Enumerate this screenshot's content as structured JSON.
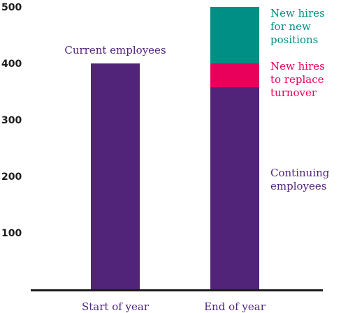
{
  "chart_data": {
    "type": "bar",
    "stacked": true,
    "categories": [
      "Start of year",
      "End of year"
    ],
    "ylim": [
      0,
      500
    ],
    "yticks": [
      100,
      200,
      300,
      400,
      500
    ],
    "grid": false,
    "series": [
      {
        "key": "current",
        "values": [
          400,
          0
        ],
        "color": "#51247a"
      },
      {
        "key": "continuing",
        "values": [
          0,
          358
        ],
        "color": "#51247a"
      },
      {
        "key": "replace",
        "values": [
          0,
          42
        ],
        "color": "#e8005a"
      },
      {
        "key": "new_positions",
        "values": [
          0,
          100
        ],
        "color": "#008f85"
      }
    ],
    "annotations": [
      {
        "key": "current",
        "lines": [
          "Current employees"
        ],
        "color": "#51247a"
      },
      {
        "key": "new_positions",
        "lines": [
          "New hires",
          "for new",
          "positions"
        ],
        "color": "#008f85"
      },
      {
        "key": "replace",
        "lines": [
          "New hires",
          "to replace",
          "turnover"
        ],
        "color": "#e8005a"
      },
      {
        "key": "continuing",
        "lines": [
          "Continuing",
          "employees"
        ],
        "color": "#51247a"
      }
    ]
  }
}
